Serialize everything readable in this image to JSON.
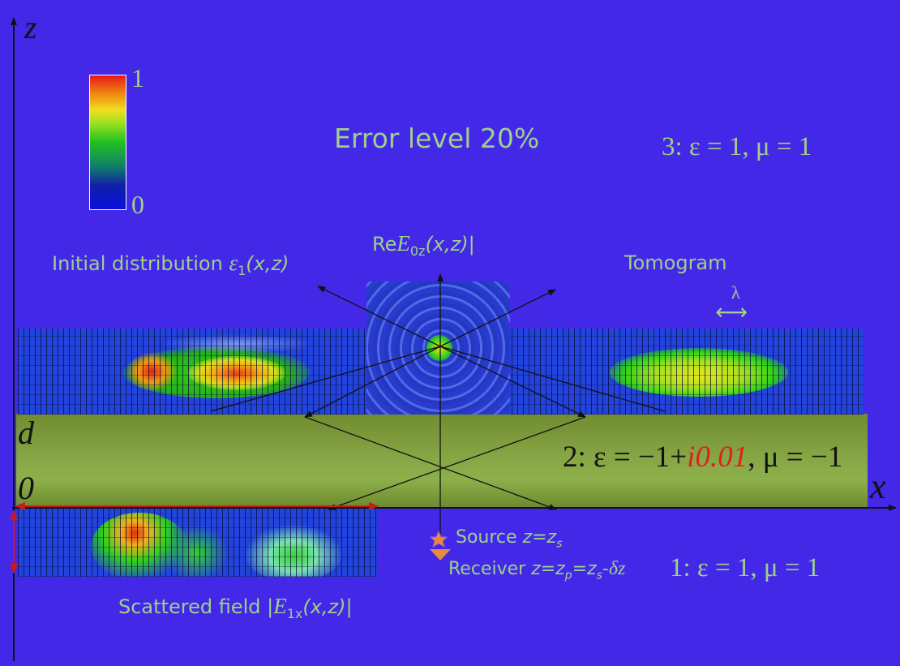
{
  "colors": {
    "background": "#4328e8",
    "label_green": "#9fd08a",
    "slab": "#7d9a3c",
    "arrow_red": "#d01818",
    "highlight_red": "#e02020"
  },
  "colorbar": {
    "max_label": "1",
    "min_label": "0"
  },
  "axes": {
    "z_label": "z",
    "x_label": "x",
    "d_label": "d",
    "zero_label": "0"
  },
  "labels": {
    "error_level": "Error level 20%",
    "medium3": "3: ε = 1, μ = 1",
    "medium2_prefix": "2: ε = −1+",
    "medium2_imag": "i0.01",
    "medium2_suffix": ", μ = −1",
    "medium1": "1: ε = 1, μ = 1",
    "initial_text": "Initial distribution ",
    "initial_eps": "ε",
    "initial_sub": "1",
    "initial_args": "(x,z)",
    "re_prefix": "Re",
    "re_E": "E",
    "re_sub": "0z",
    "re_args": "(x,z)",
    "re_bar": "|",
    "tomogram": "Tomogram",
    "lambda": "λ",
    "lambda_arrow": "⟷",
    "source_text": "Source ",
    "source_eq": "z=z",
    "source_sub": "s",
    "receiver_text": "Receiver ",
    "receiver_eq1": "z=z",
    "receiver_sub1": "p",
    "receiver_eq2": "=z",
    "receiver_sub2": "s",
    "receiver_eq3": "-",
    "receiver_delta": "δz",
    "scattered_text": "Scattered field ",
    "scattered_bar1": "|",
    "scattered_E": "E",
    "scattered_sub": "1x",
    "scattered_args": "(x,z)",
    "scattered_bar2": "|"
  }
}
